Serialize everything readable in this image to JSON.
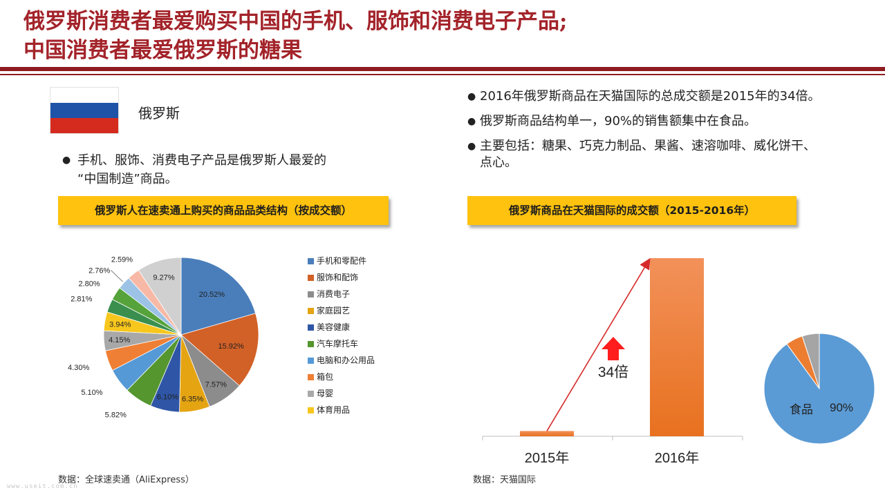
{
  "title_lines": [
    "俄罗斯消费者最爱购买中国的手机、服饰和消费电子产品;",
    "中国消费者最爱俄罗斯的糖果"
  ],
  "left": {
    "country_label": "俄罗斯",
    "flag_colors": [
      "#ffffff",
      "#1f53a8",
      "#d52b1e"
    ],
    "bullet_line1": "手机、服饰、消费电子产品是俄罗斯人最爱的",
    "bullet_line2": "“中国制造”商品。",
    "banner": "俄罗斯人在速卖通上购买的商品品类结构（按成交额）",
    "source": "数据：全球速卖通（AliExpress）"
  },
  "right": {
    "bullets": [
      "2016年俄罗斯商品在天猫国际的总成交额是2015年的34倍。",
      "俄罗斯商品结构单一，90%的销售额集中在食品。",
      "主要包括：糖果、巧克力制品、果酱、速溶咖啡、威化饼干、点心。"
    ],
    "banner": "俄罗斯商品在天猫国际的成交额（2015-2016年）",
    "source": "数据：天猫国际",
    "growth_label": "34倍",
    "food_label": "食品",
    "food_value_label": "90%"
  },
  "watermark": "www.useit.com.cn",
  "chart_data": [
    {
      "type": "pie",
      "title": "俄罗斯人在速卖通上购买的商品品类结构（按成交额）",
      "legend_position": "right",
      "slices": [
        {
          "name": "手机和零配件",
          "value": 20.52,
          "label": "20.52%",
          "color": "#4a7ebb"
        },
        {
          "name": "服饰和配饰",
          "value": 15.92,
          "label": "15.92%",
          "color": "#d26127"
        },
        {
          "name": "消费电子",
          "value": 7.57,
          "label": "7.57%",
          "color": "#8c8c8c"
        },
        {
          "name": "家庭园艺",
          "value": 6.35,
          "label": "6.35%",
          "color": "#e5a412"
        },
        {
          "name": "美容健康",
          "value": 6.1,
          "label": "6.10%",
          "color": "#2f56a6"
        },
        {
          "name": "汽车摩托车",
          "value": 5.82,
          "label": "5.82%",
          "color": "#55962f"
        },
        {
          "name": "电脑和办公用品",
          "value": 5.1,
          "label": "5.10%",
          "color": "#5599d6"
        },
        {
          "name": "箱包",
          "value": 4.3,
          "label": "4.30%",
          "color": "#ef7f35"
        },
        {
          "name": "母婴",
          "value": 4.15,
          "label": "4.15%",
          "color": "#a8a8a8"
        },
        {
          "name": "体育用品",
          "value": 3.94,
          "label": "3.94%",
          "color": "#f7c71e"
        },
        {
          "name": "",
          "value": 2.81,
          "label": "2.81%",
          "color": "#3a8f4e"
        },
        {
          "name": "",
          "value": 2.8,
          "label": "2.80%",
          "color": "#55a33a"
        },
        {
          "name": "",
          "value": 2.76,
          "label": "2.76%",
          "color": "#9cc3e6"
        },
        {
          "name": "",
          "value": 2.59,
          "label": "2.59%",
          "color": "#f7b9a6"
        },
        {
          "name": "",
          "value": 9.27,
          "label": "9.27%",
          "color": "#d0d0d0"
        }
      ]
    },
    {
      "type": "bar",
      "title": "俄罗斯商品在天猫国际的成交额（2015-2016年）",
      "categories": [
        "2015年",
        "2016年"
      ],
      "values": [
        1,
        34
      ],
      "color": "#ef7f35",
      "annotation": "34倍"
    },
    {
      "type": "pie",
      "slices": [
        {
          "name": "食品",
          "value": 90,
          "label": "90%",
          "color": "#5b9bd5"
        },
        {
          "name": "",
          "value": 5,
          "color": "#ed7d31"
        },
        {
          "name": "",
          "value": 5,
          "color": "#a5a5a5"
        }
      ]
    }
  ]
}
